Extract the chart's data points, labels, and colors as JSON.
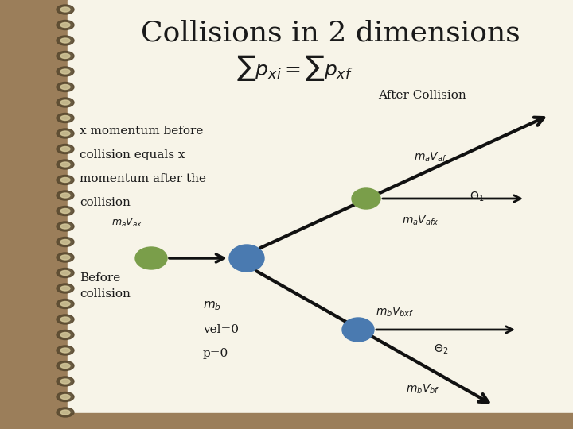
{
  "title": "Collisions in 2 dimensions",
  "subtitle": "$\\sum p_{xi} = \\sum p_{xf}$",
  "bg_color": "#9b7e5a",
  "paper_color": "#f7f4e8",
  "line_color": "#c8c4a0",
  "text_color": "#1a1a1a",
  "after_collision_label": "After Collision",
  "before_collision_label": "Before\ncollision",
  "left_text_lines": [
    "x momentum before",
    "collision equals x",
    "momentum after the",
    "collision"
  ],
  "label_mavax": "$m_aV_{ax}$",
  "label_mb": "$m_b$",
  "label_vel0": "vel=0",
  "label_p0": "p=0",
  "label_mavaf": "$m_aV_{af}$",
  "label_theta1": "$\\Theta_1$",
  "label_mavafx": "$m_aV_{afx}$",
  "label_mbvbxf": "$m_bV_{bxf}$",
  "label_theta2": "$\\Theta_2$",
  "label_mbvbf": "$m_bV_{bf}$",
  "green_color": "#7a9e4a",
  "blue_color": "#4a7ab0",
  "arrow_color": "#111111",
  "spiral_dark": "#5a4a30",
  "spiral_light": "#d4c89a",
  "border_color": "#8a7450"
}
